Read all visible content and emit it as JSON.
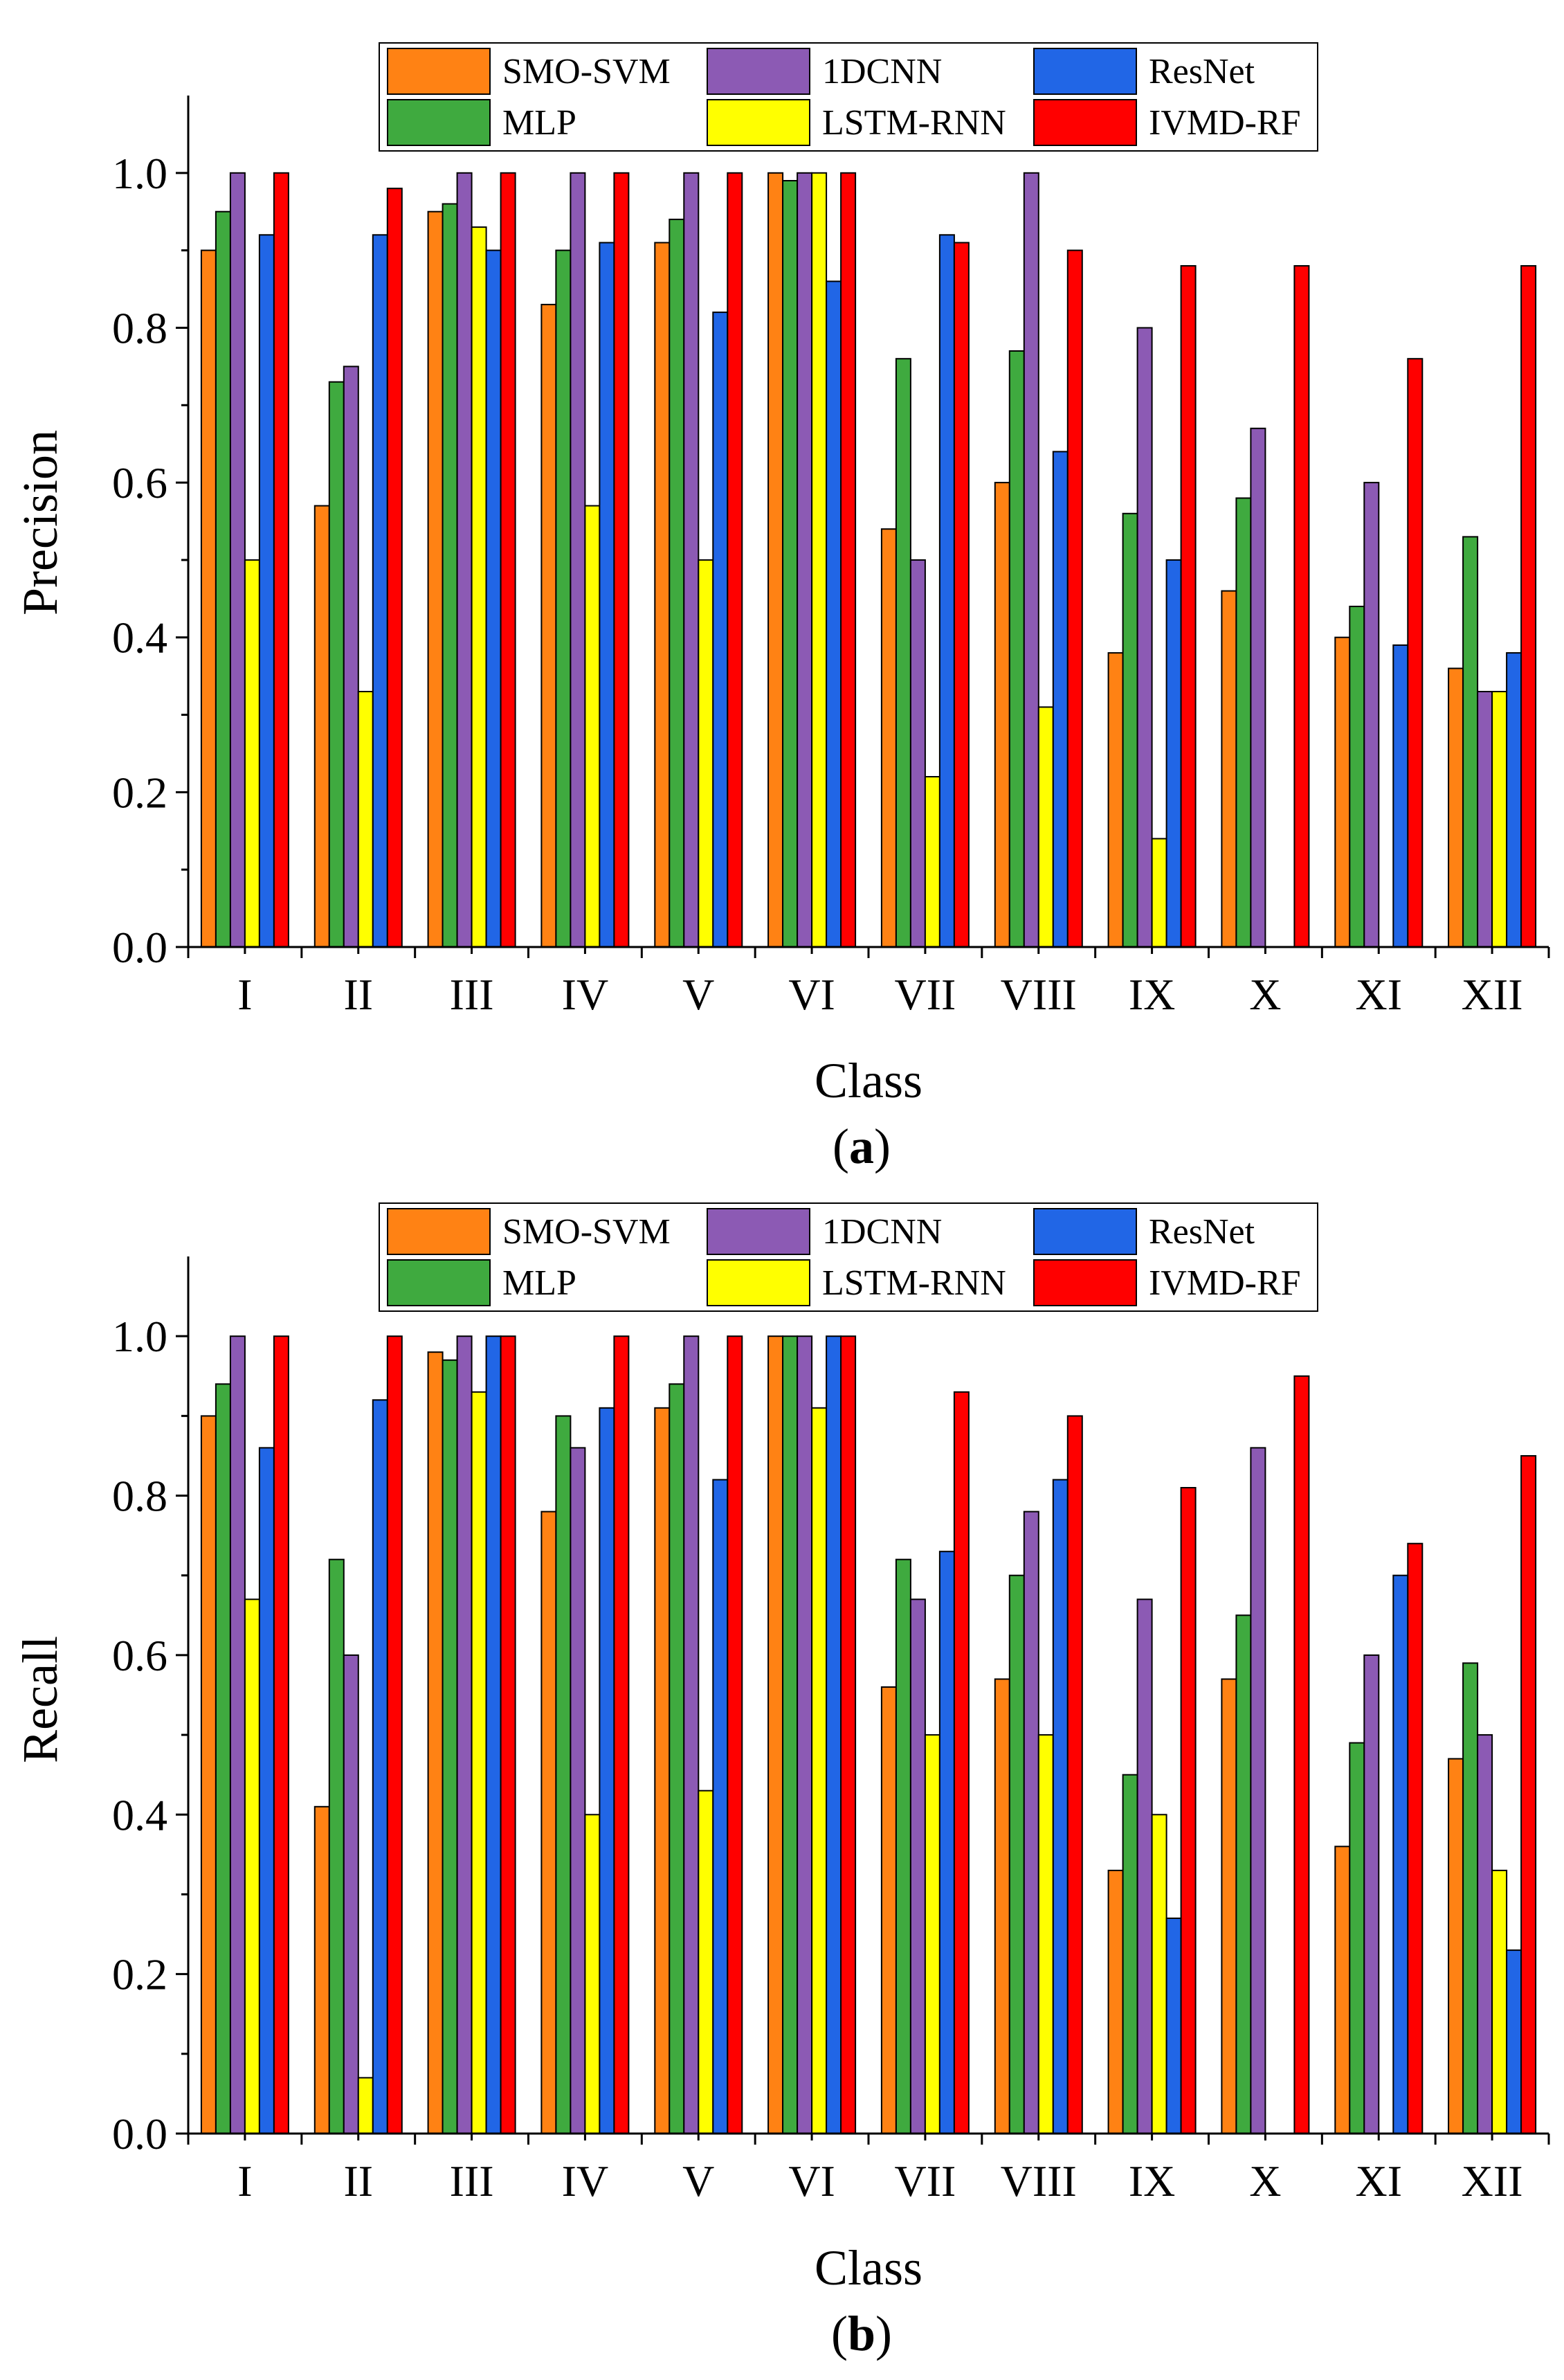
{
  "series_colors": {
    "SMO-SVM": "#FF8214",
    "MLP": "#3FAA3F",
    "1DCNN": "#8C5AB4",
    "LSTM-RNN": "#FFFF00",
    "ResNet": "#2166E6",
    "IVMD-RF": "#FF0000"
  },
  "chart_data": [
    {
      "id": "a",
      "type": "bar",
      "panel_label": "a",
      "xlabel": "Class",
      "ylabel": "Precision",
      "ylim": [
        0,
        1.1
      ],
      "yticks": [
        "0.0",
        "0.2",
        "0.4",
        "0.6",
        "0.8",
        "1.0"
      ],
      "categories": [
        "I",
        "II",
        "III",
        "IV",
        "V",
        "VI",
        "VII",
        "VIII",
        "IX",
        "X",
        "XI",
        "XII"
      ],
      "legend": [
        "SMO-SVM",
        "1DCNN",
        "ResNet",
        "MLP",
        "LSTM-RNN",
        "IVMD-RF"
      ],
      "series": [
        {
          "name": "SMO-SVM",
          "values": [
            0.9,
            0.57,
            0.95,
            0.83,
            0.91,
            1.0,
            0.54,
            0.6,
            0.38,
            0.46,
            0.4,
            0.36
          ]
        },
        {
          "name": "MLP",
          "values": [
            0.95,
            0.73,
            0.96,
            0.9,
            0.94,
            0.99,
            0.76,
            0.77,
            0.56,
            0.58,
            0.44,
            0.53
          ]
        },
        {
          "name": "1DCNN",
          "values": [
            1.0,
            0.75,
            1.0,
            1.0,
            1.0,
            1.0,
            0.5,
            1.0,
            0.8,
            0.67,
            0.6,
            0.33
          ]
        },
        {
          "name": "LSTM-RNN",
          "values": [
            0.5,
            0.33,
            0.93,
            0.57,
            0.5,
            1.0,
            0.22,
            0.31,
            0.14,
            0,
            0,
            0.33
          ]
        },
        {
          "name": "ResNet",
          "values": [
            0.92,
            0.92,
            0.9,
            0.91,
            0.82,
            0.86,
            0.92,
            0.64,
            0.5,
            0,
            0.39,
            0.38
          ]
        },
        {
          "name": "IVMD-RF",
          "values": [
            1.0,
            0.98,
            1.0,
            1.0,
            1.0,
            1.0,
            0.91,
            0.9,
            0.88,
            0.88,
            0.76,
            0.88
          ]
        }
      ]
    },
    {
      "id": "b",
      "type": "bar",
      "panel_label": "b",
      "xlabel": "Class",
      "ylabel": "Recall",
      "ylim": [
        0,
        1.1
      ],
      "yticks": [
        "0.0",
        "0.2",
        "0.4",
        "0.6",
        "0.8",
        "1.0"
      ],
      "categories": [
        "I",
        "II",
        "III",
        "IV",
        "V",
        "VI",
        "VII",
        "VIII",
        "IX",
        "X",
        "XI",
        "XII"
      ],
      "legend": [
        "SMO-SVM",
        "1DCNN",
        "ResNet",
        "MLP",
        "LSTM-RNN",
        "IVMD-RF"
      ],
      "series": [
        {
          "name": "SMO-SVM",
          "values": [
            0.9,
            0.41,
            0.98,
            0.78,
            0.91,
            1.0,
            0.56,
            0.57,
            0.33,
            0.57,
            0.36,
            0.47
          ]
        },
        {
          "name": "MLP",
          "values": [
            0.94,
            0.72,
            0.97,
            0.9,
            0.94,
            1.0,
            0.72,
            0.7,
            0.45,
            0.65,
            0.49,
            0.59
          ]
        },
        {
          "name": "1DCNN",
          "values": [
            1.0,
            0.6,
            1.0,
            0.86,
            1.0,
            1.0,
            0.67,
            0.78,
            0.67,
            0.86,
            0.6,
            0.5
          ]
        },
        {
          "name": "LSTM-RNN",
          "values": [
            0.67,
            0.07,
            0.93,
            0.4,
            0.43,
            0.91,
            0.5,
            0.5,
            0.4,
            0,
            0,
            0.33
          ]
        },
        {
          "name": "ResNet",
          "values": [
            0.86,
            0.92,
            1.0,
            0.91,
            0.82,
            1.0,
            0.73,
            0.82,
            0.27,
            0,
            0.7,
            0.23
          ]
        },
        {
          "name": "IVMD-RF",
          "values": [
            1.0,
            1.0,
            1.0,
            1.0,
            1.0,
            1.0,
            0.93,
            0.9,
            0.81,
            0.95,
            0.74,
            0.85
          ]
        }
      ]
    }
  ]
}
